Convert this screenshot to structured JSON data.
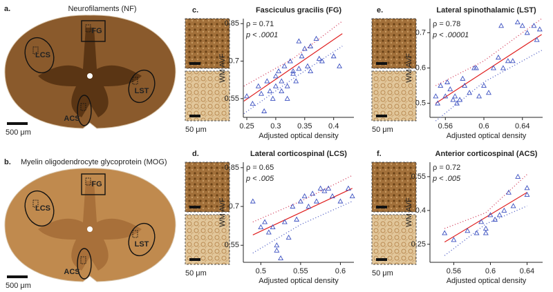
{
  "figure": {
    "sections": [
      {
        "panel": "a.",
        "title": "Neurofilaments (NF)",
        "regions": [
          "FG",
          "LCS",
          "LST",
          "ACS"
        ],
        "scale": "500 μm"
      },
      {
        "panel": "b.",
        "title": "Myelin oligodendrocyte glycoprotein (MOG)",
        "regions": [
          "FG",
          "LCS",
          "LST",
          "ACS"
        ],
        "scale": "500 μm"
      }
    ]
  },
  "chart_data": [
    {
      "type": "scatter",
      "panel": "c.",
      "title": "Fasciculus gracilis (FG)",
      "annotations": [
        "ρ = 0.71",
        "p < .0001"
      ],
      "xlabel": "Adjusted optical density",
      "ylabel": "WM AVF",
      "micrograph_scale": "50 μm",
      "marker": "triangle",
      "color": "#3a4fc0",
      "x": [
        0.25,
        0.26,
        0.27,
        0.275,
        0.28,
        0.285,
        0.29,
        0.295,
        0.3,
        0.3,
        0.305,
        0.31,
        0.31,
        0.315,
        0.32,
        0.32,
        0.325,
        0.33,
        0.33,
        0.335,
        0.34,
        0.34,
        0.345,
        0.35,
        0.355,
        0.36,
        0.36,
        0.37,
        0.375,
        0.38,
        0.4,
        0.41
      ],
      "values": [
        0.56,
        0.53,
        0.6,
        0.57,
        0.5,
        0.62,
        0.58,
        0.55,
        0.6,
        0.64,
        0.66,
        0.62,
        0.58,
        0.68,
        0.6,
        0.55,
        0.7,
        0.65,
        0.66,
        0.62,
        0.67,
        0.78,
        0.72,
        0.75,
        0.68,
        0.66,
        0.76,
        0.79,
        0.71,
        0.7,
        0.72,
        0.68
      ],
      "fit": {
        "x": [
          0.245,
          0.415
        ],
        "y": [
          0.54,
          0.81
        ],
        "color": "#e02020"
      },
      "bands": [
        {
          "x": [
            0.245,
            0.33,
            0.415
          ],
          "y": [
            0.6,
            0.71,
            0.86
          ],
          "color": "#d03050"
        },
        {
          "x": [
            0.245,
            0.33,
            0.415
          ],
          "y": [
            0.49,
            0.63,
            0.76
          ],
          "color": "#4050c0"
        }
      ],
      "xlim": [
        0.244,
        0.435
      ],
      "ylim": [
        0.475,
        0.87
      ],
      "xticks": [
        0.25,
        0.3,
        0.35,
        0.4
      ],
      "yticks": [
        0.55,
        0.7,
        0.85
      ]
    },
    {
      "type": "scatter",
      "panel": "d.",
      "title": "Lateral corticospinal (LCS)",
      "annotations": [
        "ρ = 0.65",
        "p < .005"
      ],
      "xlabel": "Adjusted optical density",
      "ylabel": "WM AVF",
      "micrograph_scale": "50 μm",
      "marker": "triangle",
      "color": "#3a4fc0",
      "x": [
        0.49,
        0.5,
        0.505,
        0.51,
        0.515,
        0.52,
        0.52,
        0.525,
        0.53,
        0.535,
        0.54,
        0.545,
        0.55,
        0.555,
        0.56,
        0.565,
        0.57,
        0.575,
        0.58,
        0.585,
        0.59,
        0.6,
        0.61,
        0.615
      ],
      "values": [
        0.72,
        0.62,
        0.64,
        0.6,
        0.62,
        0.55,
        0.53,
        0.5,
        0.64,
        0.58,
        0.7,
        0.65,
        0.72,
        0.74,
        0.7,
        0.75,
        0.72,
        0.77,
        0.76,
        0.77,
        0.74,
        0.72,
        0.77,
        0.74
      ],
      "fit": {
        "x": [
          0.49,
          0.615
        ],
        "y": [
          0.59,
          0.77
        ],
        "color": "#e02020"
      },
      "bands": [
        {
          "x": [
            0.49,
            0.55,
            0.615
          ],
          "y": [
            0.64,
            0.72,
            0.82
          ],
          "color": "#d03050"
        },
        {
          "x": [
            0.49,
            0.55,
            0.615
          ],
          "y": [
            0.52,
            0.63,
            0.72
          ],
          "color": "#4050c0"
        }
      ],
      "xlim": [
        0.478,
        0.617
      ],
      "ylim": [
        0.484,
        0.871
      ],
      "xticks": [
        0.5,
        0.55,
        0.6
      ],
      "yticks": [
        0.55,
        0.7,
        0.85
      ]
    },
    {
      "type": "scatter",
      "panel": "e.",
      "title": "Lateral spinothalamic (LST)",
      "annotations": [
        "ρ = 0.78",
        "p < .00001"
      ],
      "xlabel": "Adjusted optical density",
      "ylabel": "WM AVF",
      "micrograph_scale": "50 μm",
      "marker": "triangle",
      "color": "#3a4fc0",
      "x": [
        0.55,
        0.552,
        0.555,
        0.56,
        0.562,
        0.565,
        0.568,
        0.57,
        0.572,
        0.575,
        0.578,
        0.58,
        0.585,
        0.59,
        0.592,
        0.595,
        0.6,
        0.605,
        0.61,
        0.615,
        0.618,
        0.62,
        0.625,
        0.63,
        0.635,
        0.64,
        0.645,
        0.652,
        0.655,
        0.658
      ],
      "values": [
        0.52,
        0.5,
        0.55,
        0.52,
        0.56,
        0.54,
        0.51,
        0.52,
        0.5,
        0.51,
        0.57,
        0.55,
        0.53,
        0.6,
        0.6,
        0.52,
        0.55,
        0.53,
        0.6,
        0.63,
        0.72,
        0.6,
        0.62,
        0.62,
        0.73,
        0.72,
        0.7,
        0.72,
        0.68,
        0.71
      ],
      "fit": {
        "x": [
          0.55,
          0.66
        ],
        "y": [
          0.5,
          0.695
        ],
        "color": "#e02020"
      },
      "bands": [
        {
          "x": [
            0.55,
            0.6,
            0.66
          ],
          "y": [
            0.55,
            0.62,
            0.74
          ],
          "color": "#d03050"
        },
        {
          "x": [
            0.55,
            0.6,
            0.66
          ],
          "y": [
            0.45,
            0.56,
            0.65
          ],
          "color": "#4050c0"
        }
      ],
      "xlim": [
        0.544,
        0.661
      ],
      "ylim": [
        0.46,
        0.74
      ],
      "xticks": [
        0.56,
        0.6,
        0.64
      ],
      "yticks": [
        0.5,
        0.6,
        0.7
      ]
    },
    {
      "type": "scatter",
      "panel": "f.",
      "title": "Anterior corticospinal (ACS)",
      "annotations": [
        "ρ = 0.72",
        "p < .005"
      ],
      "xlabel": "Adjusted optical density",
      "ylabel": "WM AVF",
      "micrograph_scale": "50 μm",
      "marker": "triangle",
      "color": "#3a4fc0",
      "x": [
        0.55,
        0.56,
        0.575,
        0.585,
        0.59,
        0.595,
        0.595,
        0.6,
        0.605,
        0.61,
        0.615,
        0.62,
        0.625,
        0.63,
        0.64,
        0.64
      ],
      "values": [
        0.3,
        0.27,
        0.31,
        0.3,
        0.35,
        0.32,
        0.3,
        0.38,
        0.36,
        0.38,
        0.4,
        0.48,
        0.42,
        0.55,
        0.5,
        0.47
      ],
      "fit": {
        "x": [
          0.55,
          0.64
        ],
        "y": [
          0.26,
          0.48
        ],
        "color": "#e02020"
      },
      "bands": [
        {
          "x": [
            0.55,
            0.595,
            0.64
          ],
          "y": [
            0.32,
            0.39,
            0.56
          ],
          "color": "#d03050"
        },
        {
          "x": [
            0.55,
            0.595,
            0.64
          ],
          "y": [
            0.2,
            0.34,
            0.42
          ],
          "color": "#4050c0"
        }
      ],
      "xlim": [
        0.534,
        0.657
      ],
      "ylim": [
        0.17,
        0.614
      ],
      "xticks": [
        0.56,
        0.6,
        0.64
      ],
      "yticks": [
        0.25,
        0.4,
        0.55
      ]
    }
  ]
}
